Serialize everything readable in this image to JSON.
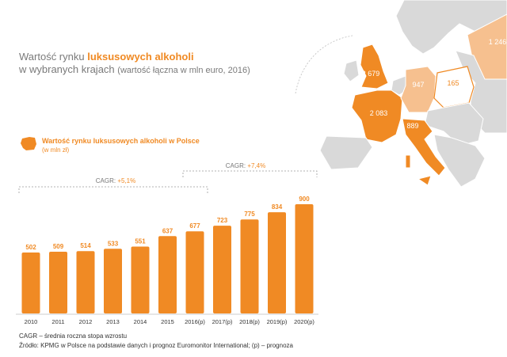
{
  "title": {
    "prefix": "Wartość rynku ",
    "highlight": "luksusowych alkoholi",
    "line2_main": "w wybranych krajach",
    "line2_paren": "(wartość łączna w mln euro, 2016)"
  },
  "legend": {
    "label": "Wartość rynku luksusowych alkoholi w Polsce",
    "unit": "(w mln zł)"
  },
  "cagr": [
    {
      "label": "CAGR: ",
      "value": "+5,1%"
    },
    {
      "label": "CAGR: ",
      "value": "+7,4%"
    }
  ],
  "map_values": {
    "uk": "2 679",
    "germany": "947",
    "poland": "165",
    "france": "2 083",
    "italy": "889",
    "russia": "1 246"
  },
  "colors": {
    "accent": "#f08a24",
    "light_accent": "#f6c08f",
    "map_land": "#d9d9d9"
  },
  "chart_data": {
    "type": "bar",
    "categories": [
      "2010",
      "2011",
      "2012",
      "2013",
      "2014",
      "2015",
      "2016(p)",
      "2017(p)",
      "2018(p)",
      "2019(p)",
      "2020(p)"
    ],
    "values": [
      502,
      509,
      514,
      533,
      551,
      637,
      677,
      723,
      775,
      834,
      900
    ],
    "ylim": [
      0,
      900
    ]
  },
  "footnote": {
    "line1": "CAGR – średnia roczna stopa wzrostu",
    "line2": "Źródło: KPMG w Polsce na podstawie danych i prognoz Euromonitor International; (p) – prognoza"
  }
}
